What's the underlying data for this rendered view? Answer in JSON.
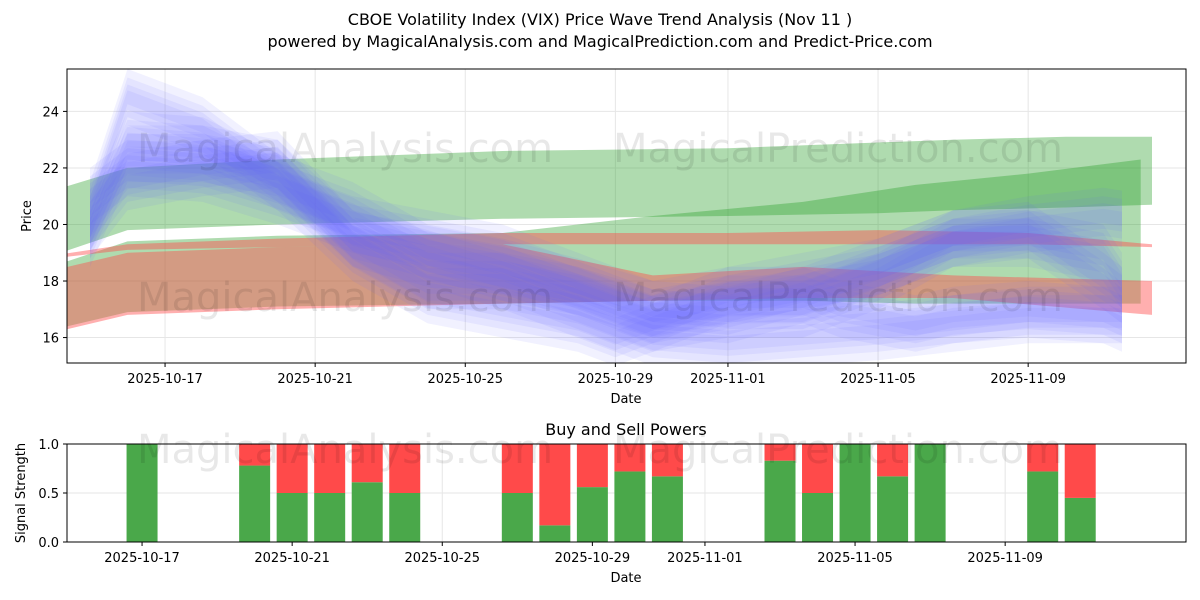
{
  "title_line1": "CBOE Volatility Index (VIX) Price Wave Trend Analysis (Nov 11 )",
  "title_line2": "powered by MagicalAnalysis.com and MagicalPrediction.com and Predict-Price.com",
  "watermarks": [
    "MagicalAnalysis.com",
    "MagicalPrediction.com"
  ],
  "colors": {
    "green": "#2ca02c",
    "red": "#ff4d4d",
    "blue": "#6666ff",
    "bar_green": "#4aa84a",
    "bar_red": "#ff4a4a"
  },
  "chart_data": [
    {
      "type": "area",
      "title": "",
      "xlabel": "Date",
      "ylabel": "Price",
      "x_range": [
        "2025-10-14",
        "2025-11-12"
      ],
      "ylim": [
        15.1,
        25.5
      ],
      "yticks": [
        "16",
        "18",
        "20",
        "22",
        "24"
      ],
      "xticks": [
        "2025-10-17",
        "2025-10-21",
        "2025-10-25",
        "2025-10-29",
        "2025-11-01",
        "2025-11-05",
        "2025-11-09"
      ],
      "grid": true,
      "green_bands": [
        {
          "x": [
            0,
            2,
            6,
            12,
            18,
            22,
            24,
            27,
            29.3
          ],
          "upper": [
            21.2,
            22.0,
            22.3,
            22.6,
            22.7,
            22.9,
            23.0,
            23.1,
            23.1
          ],
          "lower": [
            18.9,
            19.8,
            20.0,
            20.2,
            20.3,
            20.4,
            20.5,
            20.6,
            20.7
          ]
        },
        {
          "x": [
            0.4,
            2,
            6,
            12,
            16,
            20,
            23,
            26,
            29
          ],
          "upper": [
            18.7,
            19.4,
            19.6,
            19.7,
            20.3,
            20.8,
            21.4,
            21.8,
            22.3
          ],
          "lower": [
            16.4,
            16.9,
            17.1,
            17.2,
            17.3,
            17.3,
            17.2,
            17.2,
            17.2
          ]
        }
      ],
      "red_bands": [
        {
          "x": [
            0,
            2,
            6,
            12,
            18,
            22,
            26,
            29.3
          ],
          "upper": [
            18.9,
            19.3,
            19.5,
            19.7,
            19.7,
            19.8,
            19.7,
            19.3
          ],
          "lower": [
            18.8,
            19.1,
            19.2,
            19.3,
            19.3,
            19.3,
            19.3,
            19.2
          ]
        },
        {
          "x": [
            0.4,
            2,
            6,
            12,
            16,
            20,
            24,
            29.3
          ],
          "upper": [
            18.5,
            19.0,
            19.2,
            19.3,
            18.2,
            18.5,
            18.2,
            18.0
          ],
          "lower": [
            16.3,
            16.8,
            17.0,
            17.2,
            17.3,
            17.4,
            17.4,
            16.8
          ]
        }
      ],
      "blue_waves": [
        {
          "x": [
            1,
            2,
            4,
            6,
            8,
            10,
            12,
            14,
            15,
            16,
            18,
            20,
            21,
            23,
            24,
            26,
            28,
            28.5
          ],
          "y": [
            20.5,
            24.5,
            23.5,
            21.5,
            19.0,
            17.5,
            17.0,
            16.5,
            16.0,
            16.5,
            17.5,
            17.5,
            17.0,
            16.5,
            16.8,
            17.0,
            16.8,
            16.5
          ]
        },
        {
          "x": [
            1,
            2,
            4,
            6,
            8,
            10,
            12,
            14,
            16,
            18,
            20,
            22,
            24,
            26,
            28,
            28.5
          ],
          "y": [
            19.5,
            22.5,
            22.5,
            22.0,
            19.5,
            18.0,
            18.0,
            17.5,
            16.5,
            17.0,
            17.0,
            18.0,
            19.5,
            19.8,
            18.0,
            17.5
          ]
        },
        {
          "x": [
            1,
            2,
            4,
            6,
            8,
            10,
            12,
            14,
            16,
            18,
            20,
            22,
            24,
            26,
            28,
            28.5
          ],
          "y": [
            20.0,
            23.0,
            22.8,
            21.5,
            20.5,
            19.0,
            18.5,
            17.8,
            17.0,
            16.8,
            17.5,
            18.5,
            19.5,
            19.5,
            19.0,
            18.0
          ]
        },
        {
          "x": [
            1,
            2,
            4,
            6,
            8,
            10,
            12,
            14,
            16,
            18,
            20,
            22,
            24,
            26,
            28,
            28.5
          ],
          "y": [
            19.8,
            21.5,
            22.0,
            22.3,
            19.5,
            18.8,
            18.0,
            17.0,
            16.0,
            15.8,
            16.0,
            16.2,
            16.5,
            16.8,
            16.8,
            16.8
          ]
        },
        {
          "x": [
            1,
            2,
            4,
            6,
            8,
            10,
            12,
            14,
            16,
            18,
            20,
            22,
            24,
            26,
            28,
            28.5
          ],
          "y": [
            21.0,
            22.0,
            21.8,
            21.0,
            20.0,
            19.5,
            19.0,
            18.0,
            17.0,
            17.5,
            18.0,
            18.5,
            19.5,
            20.0,
            20.3,
            20.2
          ]
        }
      ],
      "bands_note": "Overlapping translucent wave bands; x values are days since 2025-10-14."
    },
    {
      "type": "bar",
      "title": "Buy and Sell Powers",
      "xlabel": "Date",
      "ylabel": "Signal Strength",
      "ylim": [
        0.0,
        1.0
      ],
      "yticks": [
        "0.0",
        "0.5",
        "1.0"
      ],
      "xticks": [
        "2025-10-17",
        "2025-10-21",
        "2025-10-25",
        "2025-10-29",
        "2025-11-01",
        "2025-11-05",
        "2025-11-09"
      ],
      "grid": true,
      "dates": [
        "2025-10-17",
        "2025-10-20",
        "2025-10-21",
        "2025-10-22",
        "2025-10-23",
        "2025-10-24",
        "2025-10-27",
        "2025-10-28",
        "2025-10-29",
        "2025-10-30",
        "2025-10-31",
        "2025-11-03",
        "2025-11-04",
        "2025-11-05",
        "2025-11-06",
        "2025-11-07",
        "2025-11-10",
        "2025-11-11"
      ],
      "series": [
        {
          "name": "Buy",
          "color": "#4aa84a",
          "values": [
            1.0,
            0.78,
            0.5,
            0.5,
            0.61,
            0.5,
            0.5,
            0.17,
            0.56,
            0.72,
            0.67,
            0.83,
            0.5,
            1.0,
            0.67,
            1.0,
            0.72,
            0.45
          ]
        },
        {
          "name": "Sell",
          "color": "#ff4a4a",
          "values": [
            0.0,
            0.22,
            0.5,
            0.5,
            0.39,
            0.5,
            0.5,
            0.83,
            0.44,
            0.28,
            0.33,
            0.17,
            0.5,
            0.0,
            0.33,
            0.0,
            0.28,
            0.55
          ]
        }
      ]
    }
  ]
}
